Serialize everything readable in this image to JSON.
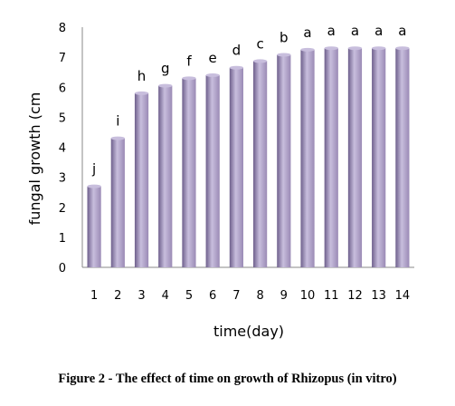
{
  "caption": "Figure 2 - The effect of time on growth of Rhizopus (in vitro)",
  "chart_data": {
    "type": "bar",
    "title": "",
    "xlabel": "time(day)",
    "ylabel": "fungal growth (cm",
    "ylim": [
      0,
      8
    ],
    "yticks": [
      0,
      1,
      2,
      3,
      4,
      5,
      6,
      7,
      8
    ],
    "categories": [
      "1",
      "2",
      "3",
      "4",
      "5",
      "6",
      "7",
      "8",
      "9",
      "10",
      "11",
      "12",
      "13",
      "14"
    ],
    "values": [
      2.7,
      4.3,
      5.8,
      6.05,
      6.3,
      6.4,
      6.65,
      6.87,
      7.08,
      7.25,
      7.3,
      7.3,
      7.3,
      7.3
    ],
    "labels": [
      "j",
      "i",
      "h",
      "g",
      "f",
      "e",
      "d",
      "c",
      "b",
      "a",
      "a",
      "a",
      "a",
      "a"
    ],
    "bar_color": "#9a8ab5",
    "bar_highlight": "#c8bedd",
    "bar_shadow": "#6e5f8c",
    "grid": false,
    "legend": "none"
  }
}
